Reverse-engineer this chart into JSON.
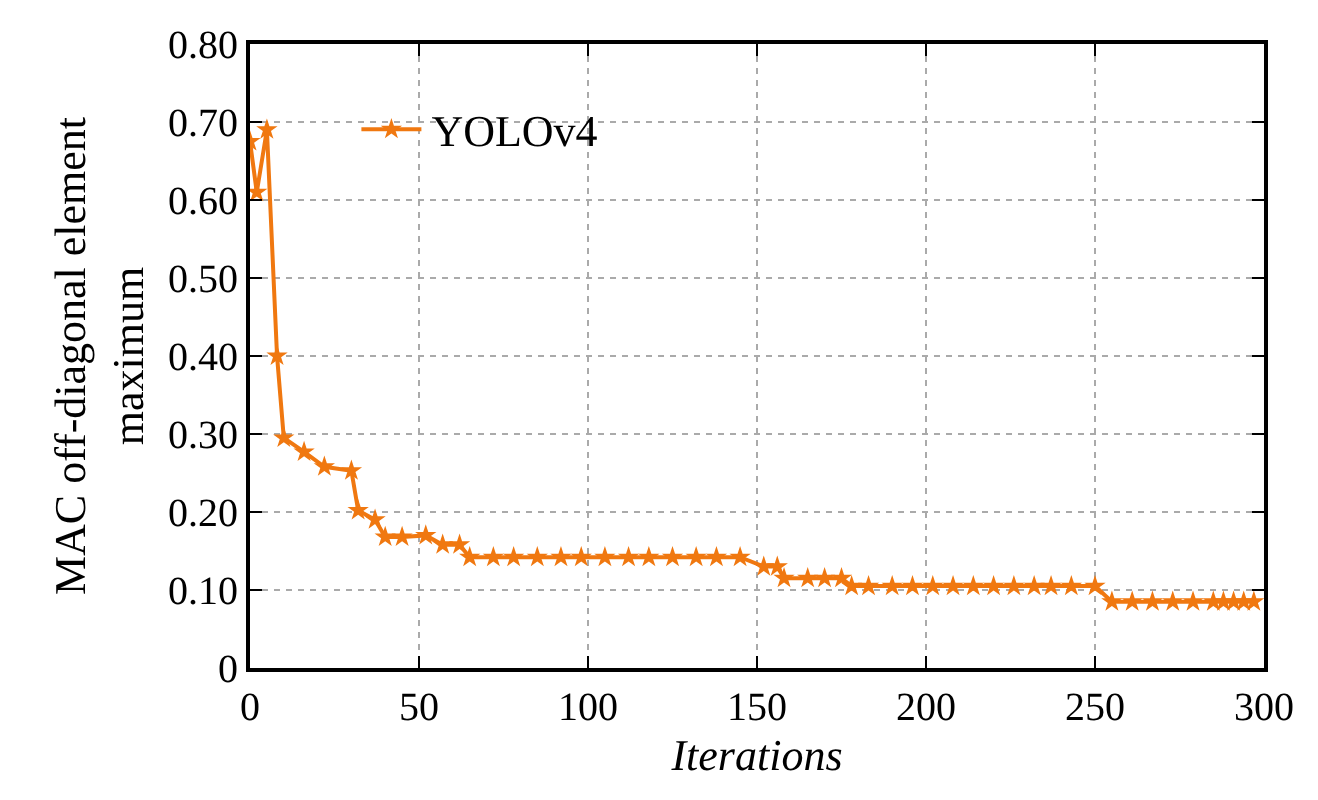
{
  "chart_data": {
    "type": "line",
    "xlabel": "Iterations",
    "ylabel": "MAC off-diagonal element\nmaximum",
    "xlim": [
      0,
      300
    ],
    "xticks": [
      0,
      50,
      100,
      150,
      200,
      250,
      300
    ],
    "ylim": [
      0,
      0.8
    ],
    "yticks": [
      0,
      {
        "value": 0.1,
        "label": "0.10"
      },
      {
        "value": 0.2,
        "label": "0.20"
      },
      {
        "value": 0.3,
        "label": "0.30"
      },
      {
        "value": 0.4,
        "label": "0.40"
      },
      {
        "value": 0.5,
        "label": "0.50"
      },
      {
        "value": 0.6,
        "label": "0.60"
      },
      {
        "value": 0.7,
        "label": "0.70"
      },
      {
        "value": 0.8,
        "label": "0.80"
      }
    ],
    "grid": true,
    "legend": "top left",
    "marker": "star",
    "line_style": "solid",
    "series": [
      {
        "name": "YOLOv4",
        "color": "#f07810",
        "x": [
          0,
          2,
          5,
          8,
          10,
          16,
          22,
          30,
          32,
          37,
          40,
          45,
          52,
          57,
          62,
          65,
          72,
          78,
          85,
          92,
          98,
          105,
          112,
          118,
          125,
          132,
          138,
          145,
          152,
          156,
          158,
          165,
          170,
          175,
          178,
          183,
          190,
          196,
          202,
          208,
          214,
          220,
          226,
          232,
          237,
          243,
          250,
          255,
          261,
          267,
          273,
          279,
          285,
          288,
          291,
          294,
          297
        ],
        "values": [
          0.675,
          0.61,
          0.69,
          0.4,
          0.295,
          0.277,
          0.258,
          0.253,
          0.202,
          0.19,
          0.168,
          0.168,
          0.17,
          0.158,
          0.158,
          0.142,
          0.142,
          0.142,
          0.142,
          0.142,
          0.142,
          0.142,
          0.142,
          0.142,
          0.142,
          0.142,
          0.142,
          0.142,
          0.13,
          0.13,
          0.115,
          0.115,
          0.115,
          0.115,
          0.105,
          0.105,
          0.105,
          0.105,
          0.105,
          0.105,
          0.105,
          0.105,
          0.105,
          0.105,
          0.105,
          0.105,
          0.105,
          0.085,
          0.085,
          0.085,
          0.085,
          0.085,
          0.085,
          0.085,
          0.085,
          0.085,
          0.085
        ]
      }
    ]
  }
}
